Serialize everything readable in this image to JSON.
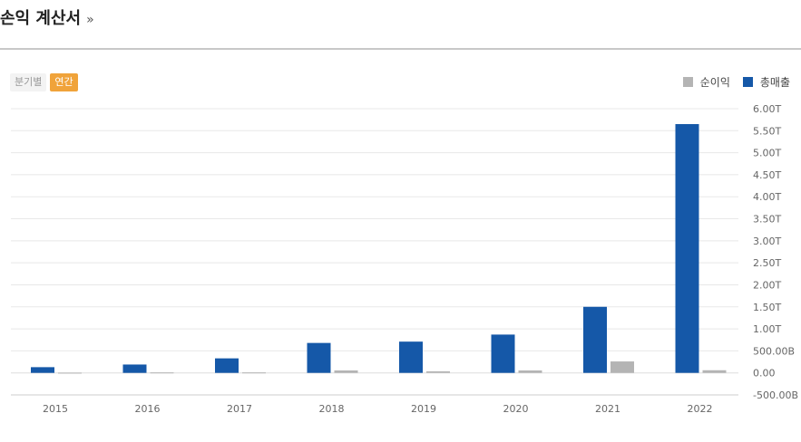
{
  "header": {
    "title": "손익 계산서",
    "arrow": "»"
  },
  "toggle": {
    "options": [
      "분기별",
      "연간"
    ],
    "active_index": 1
  },
  "chart_data": {
    "type": "bar",
    "categories": [
      "2015",
      "2016",
      "2017",
      "2018",
      "2019",
      "2020",
      "2021",
      "2022"
    ],
    "series": [
      {
        "name": "총매출",
        "color": "#1558a8",
        "values": [
          130,
          190,
          330,
          680,
          710,
          870,
          1500,
          5650
        ]
      },
      {
        "name": "순이익",
        "color": "#b4b4b4",
        "values": [
          5,
          10,
          10,
          55,
          35,
          55,
          260,
          60
        ]
      }
    ],
    "legend": [
      "순이익",
      "총매출"
    ],
    "legend_placement": "top-right",
    "y_unit": "B",
    "ylim": [
      -500,
      6000
    ],
    "y_tick_labels": [
      "6.00T",
      "5.50T",
      "5.00T",
      "4.50T",
      "4.00T",
      "3.50T",
      "3.00T",
      "2.50T",
      "2.00T",
      "1.50T",
      "1.00T",
      "500.00B",
      "0.00",
      "-500.00B"
    ],
    "grid": true
  }
}
